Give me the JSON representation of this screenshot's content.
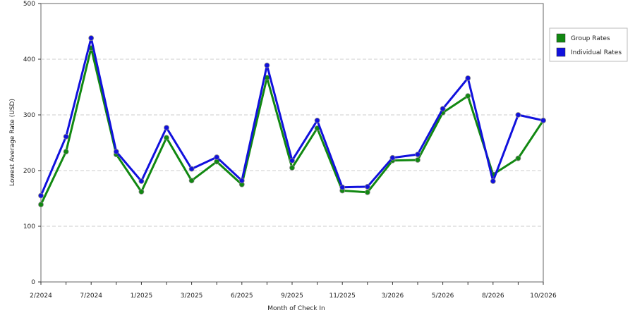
{
  "chart_data": {
    "type": "line",
    "x_label": "Month of Check In",
    "y_label": "Lowest Average Rate (USD)",
    "categories": [
      "2/2024",
      null,
      "7/2024",
      null,
      "1/2025",
      null,
      "3/2025",
      null,
      "6/2025",
      null,
      "9/2025",
      null,
      "11/2025",
      null,
      "3/2026",
      null,
      "5/2026",
      null,
      "8/2026",
      null,
      "10/2026"
    ],
    "series": [
      {
        "name": "Group Rates",
        "color": "#118811",
        "values": [
          139,
          234,
          420,
          229,
          162,
          259,
          182,
          216,
          175,
          367,
          205,
          276,
          164,
          161,
          218,
          219,
          304,
          334,
          193,
          222,
          290
        ]
      },
      {
        "name": "Individual Rates",
        "color": "#1111dd",
        "values": [
          155,
          261,
          438,
          234,
          181,
          277,
          203,
          224,
          182,
          389,
          218,
          290,
          170,
          171,
          223,
          229,
          311,
          366,
          181,
          300,
          290
        ]
      }
    ],
    "ylim": [
      0,
      500
    ],
    "yticks": [
      0,
      100,
      200,
      300,
      400,
      500
    ],
    "grid": true,
    "legend": "right"
  }
}
